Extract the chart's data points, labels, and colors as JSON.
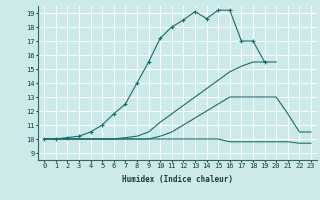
{
  "xlabel": "Humidex (Indice chaleur)",
  "background_color": "#cceaea",
  "grid_color": "#ffffff",
  "line_color": "#1a6b6b",
  "xlim": [
    -0.5,
    23.5
  ],
  "ylim": [
    8.5,
    19.5
  ],
  "yticks": [
    9,
    10,
    11,
    12,
    13,
    14,
    15,
    16,
    17,
    18,
    19
  ],
  "xticks": [
    0,
    1,
    2,
    3,
    4,
    5,
    6,
    7,
    8,
    9,
    10,
    11,
    12,
    13,
    14,
    15,
    16,
    17,
    18,
    19,
    20,
    21,
    22,
    23
  ],
  "curve1": {
    "x": [
      0,
      1,
      2,
      3,
      4,
      5,
      6,
      7,
      8,
      9,
      10,
      11,
      12,
      13,
      14,
      15,
      16,
      17,
      18,
      19
    ],
    "y": [
      10,
      10,
      10.1,
      10.2,
      10.5,
      11.0,
      11.8,
      12.5,
      14.0,
      15.5,
      17.2,
      18.0,
      18.5,
      19.1,
      18.6,
      19.2,
      19.2,
      17.0,
      17.0,
      15.5
    ]
  },
  "curve2": {
    "x": [
      0,
      1,
      2,
      3,
      4,
      5,
      6,
      7,
      8,
      9,
      10,
      11,
      12,
      13,
      14,
      15,
      16,
      17,
      18,
      19,
      20
    ],
    "y": [
      10,
      10,
      10.0,
      10.0,
      10.0,
      10.0,
      10.0,
      10.1,
      10.2,
      10.5,
      11.2,
      11.8,
      12.4,
      13.0,
      13.6,
      14.2,
      14.8,
      15.2,
      15.5,
      15.5,
      15.5
    ]
  },
  "curve3": {
    "x": [
      0,
      1,
      2,
      3,
      4,
      5,
      6,
      7,
      8,
      9,
      10,
      11,
      12,
      13,
      14,
      15,
      16,
      17,
      18,
      19,
      20,
      21,
      22,
      23
    ],
    "y": [
      10,
      10,
      10.0,
      10.0,
      10.0,
      10.0,
      10.0,
      10.0,
      10.0,
      10.0,
      10.2,
      10.5,
      11.0,
      11.5,
      12.0,
      12.5,
      13.0,
      13.0,
      13.0,
      13.0,
      13.0,
      11.8,
      10.5,
      10.5
    ]
  },
  "curve4": {
    "x": [
      0,
      1,
      2,
      3,
      4,
      5,
      6,
      7,
      8,
      9,
      10,
      11,
      12,
      13,
      14,
      15,
      16,
      17,
      18,
      19,
      20,
      21,
      22,
      23
    ],
    "y": [
      10,
      10,
      10.0,
      10.0,
      10.0,
      10.0,
      10.0,
      10.0,
      10.0,
      10.0,
      10.0,
      10.0,
      10.0,
      10.0,
      10.0,
      10.0,
      9.8,
      9.8,
      9.8,
      9.8,
      9.8,
      9.8,
      9.7,
      9.7
    ]
  }
}
